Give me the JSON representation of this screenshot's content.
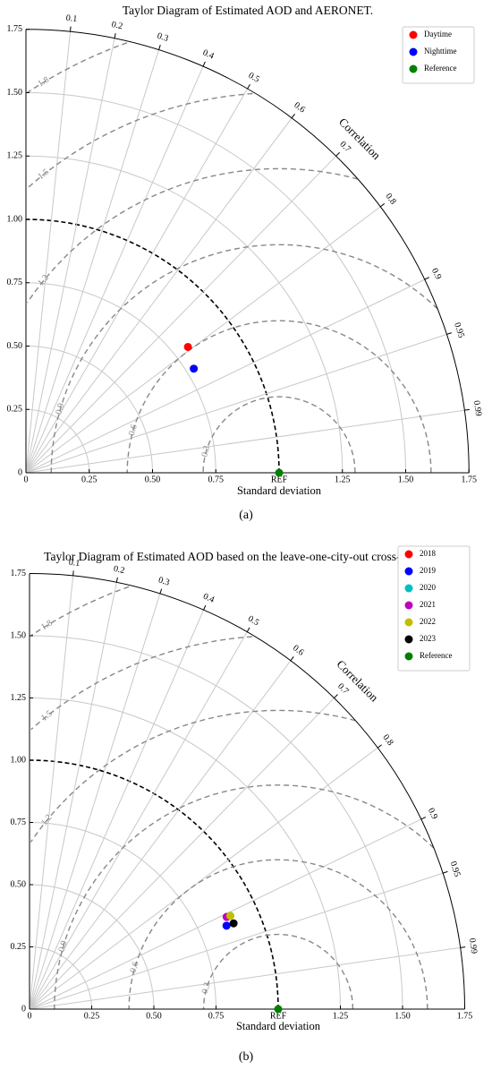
{
  "chart_data": [
    {
      "type": "taylor",
      "title": "Taylor Diagram of Estimated AOD and AERONET.",
      "xlabel": "Standard deviation",
      "correlation_label": "Correlation",
      "caption": "(a)",
      "xlim": [
        0,
        1.75
      ],
      "ylim": [
        0,
        1.75
      ],
      "xticks": [
        0,
        0.25,
        {
          "value": 0.5,
          "label": "0.50"
        },
        0.75,
        {
          "value": 1,
          "label": "REF"
        },
        1.25,
        {
          "value": 1.5,
          "label": "1.50"
        },
        1.75
      ],
      "yticks": [
        0,
        0.25,
        {
          "value": 0.5,
          "label": "0.50"
        },
        0.75,
        {
          "value": 1,
          "label": "1.00"
        },
        1.25,
        {
          "value": 1.5,
          "label": "1.50"
        },
        1.75
      ],
      "correlation_ticks": [
        0.1,
        0.2,
        0.3,
        0.4,
        0.5,
        0.6,
        0.7,
        0.8,
        0.9,
        0.95,
        0.99
      ],
      "rmsd_ticks": [
        0.3,
        0.6,
        0.9,
        1.2,
        1.5,
        1.8
      ],
      "legend": "upper right",
      "series": [
        {
          "name": "Daytime",
          "color": "#ff0000",
          "std": [
            0.81
          ],
          "corr": [
            0.79
          ]
        },
        {
          "name": "Nighttime",
          "color": "#0000ff",
          "std": [
            0.78
          ],
          "corr": [
            0.85
          ]
        },
        {
          "name": "Reference",
          "color": "#008000",
          "std": [
            1
          ],
          "corr": [
            1
          ]
        }
      ]
    },
    {
      "type": "taylor",
      "title": "Taylor Diagram of Estimated AOD based on the leave-one-city-out cross-validation.",
      "xlabel": "Standard deviation",
      "correlation_label": "Correlation",
      "caption": "(b)",
      "xlim": [
        0,
        1.75
      ],
      "ylim": [
        0,
        1.75
      ],
      "xticks": [
        0,
        0.25,
        {
          "value": 0.5,
          "label": "0.50"
        },
        0.75,
        {
          "value": 1,
          "label": "REF"
        },
        1.25,
        {
          "value": 1.5,
          "label": "1.50"
        },
        1.75
      ],
      "yticks": [
        0,
        0.25,
        {
          "value": 0.5,
          "label": "0.50"
        },
        0.75,
        {
          "value": 1,
          "label": "1.00"
        },
        1.25,
        {
          "value": 1.5,
          "label": "1.50"
        },
        1.75
      ],
      "correlation_ticks": [
        0.1,
        0.2,
        0.3,
        0.4,
        0.5,
        0.6,
        0.7,
        0.8,
        0.9,
        0.95,
        0.99
      ],
      "rmsd_ticks": [
        0.3,
        0.6,
        0.9,
        1.2,
        1.5,
        1.8
      ],
      "legend": "upper right",
      "series": [
        {
          "name": "2018",
          "color": "#ff0000",
          "std": [
            0.875
          ],
          "corr": [
            0.906
          ]
        },
        {
          "name": "2019",
          "color": "#0000ff",
          "std": [
            0.86
          ],
          "corr": [
            0.921
          ]
        },
        {
          "name": "2020",
          "color": "#00bfbf",
          "std": [
            0.89
          ],
          "corr": [
            0.907
          ]
        },
        {
          "name": "2021",
          "color": "#bf00bf",
          "std": [
            0.875
          ],
          "corr": [
            0.906
          ]
        },
        {
          "name": "2022",
          "color": "#bfbf00",
          "std": [
            0.89
          ],
          "corr": [
            0.907
          ]
        },
        {
          "name": "2023",
          "color": "#000000",
          "std": [
            0.89
          ],
          "corr": [
            0.922
          ]
        },
        {
          "name": "Reference",
          "color": "#008000",
          "std": [
            1
          ],
          "corr": [
            1
          ]
        }
      ]
    }
  ]
}
